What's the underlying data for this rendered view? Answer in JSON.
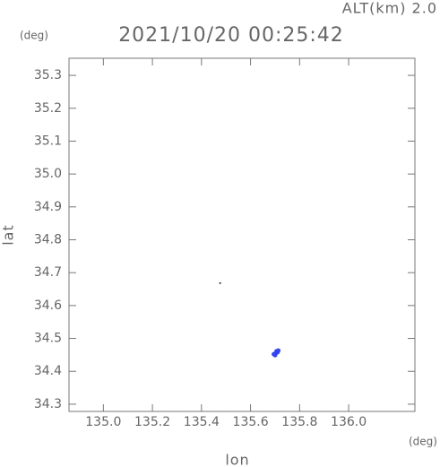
{
  "chart_data": {
    "type": "scatter",
    "title": "2021/10/20 00:25:42",
    "annotation": "ALT(km) 2.0",
    "x_label": "lon",
    "y_label": "lat",
    "x_unit": "(deg)",
    "y_unit": "(deg)",
    "xlim": [
      134.86,
      136.27
    ],
    "ylim": [
      34.278,
      35.352
    ],
    "xticks": [
      {
        "value": 135.0,
        "label": "135.0"
      },
      135.2,
      135.4,
      135.6,
      135.8,
      {
        "value": 136.0,
        "label": "136.0"
      }
    ],
    "yticks": [
      34.3,
      34.4,
      34.5,
      34.6,
      34.7,
      34.8,
      34.9,
      {
        "value": 35.0,
        "label": "35.0"
      },
      35.1,
      35.2,
      35.3
    ],
    "series": [
      {
        "color": "#222222",
        "x": [
          135.476
        ],
        "values": [
          34.668
        ]
      },
      {
        "color": "#3344ee",
        "x": [
          135.695,
          135.703,
          135.71,
          135.7,
          135.713,
          135.706
        ],
        "values": [
          34.452,
          34.455,
          34.458,
          34.449,
          34.463,
          34.461
        ]
      }
    ]
  }
}
